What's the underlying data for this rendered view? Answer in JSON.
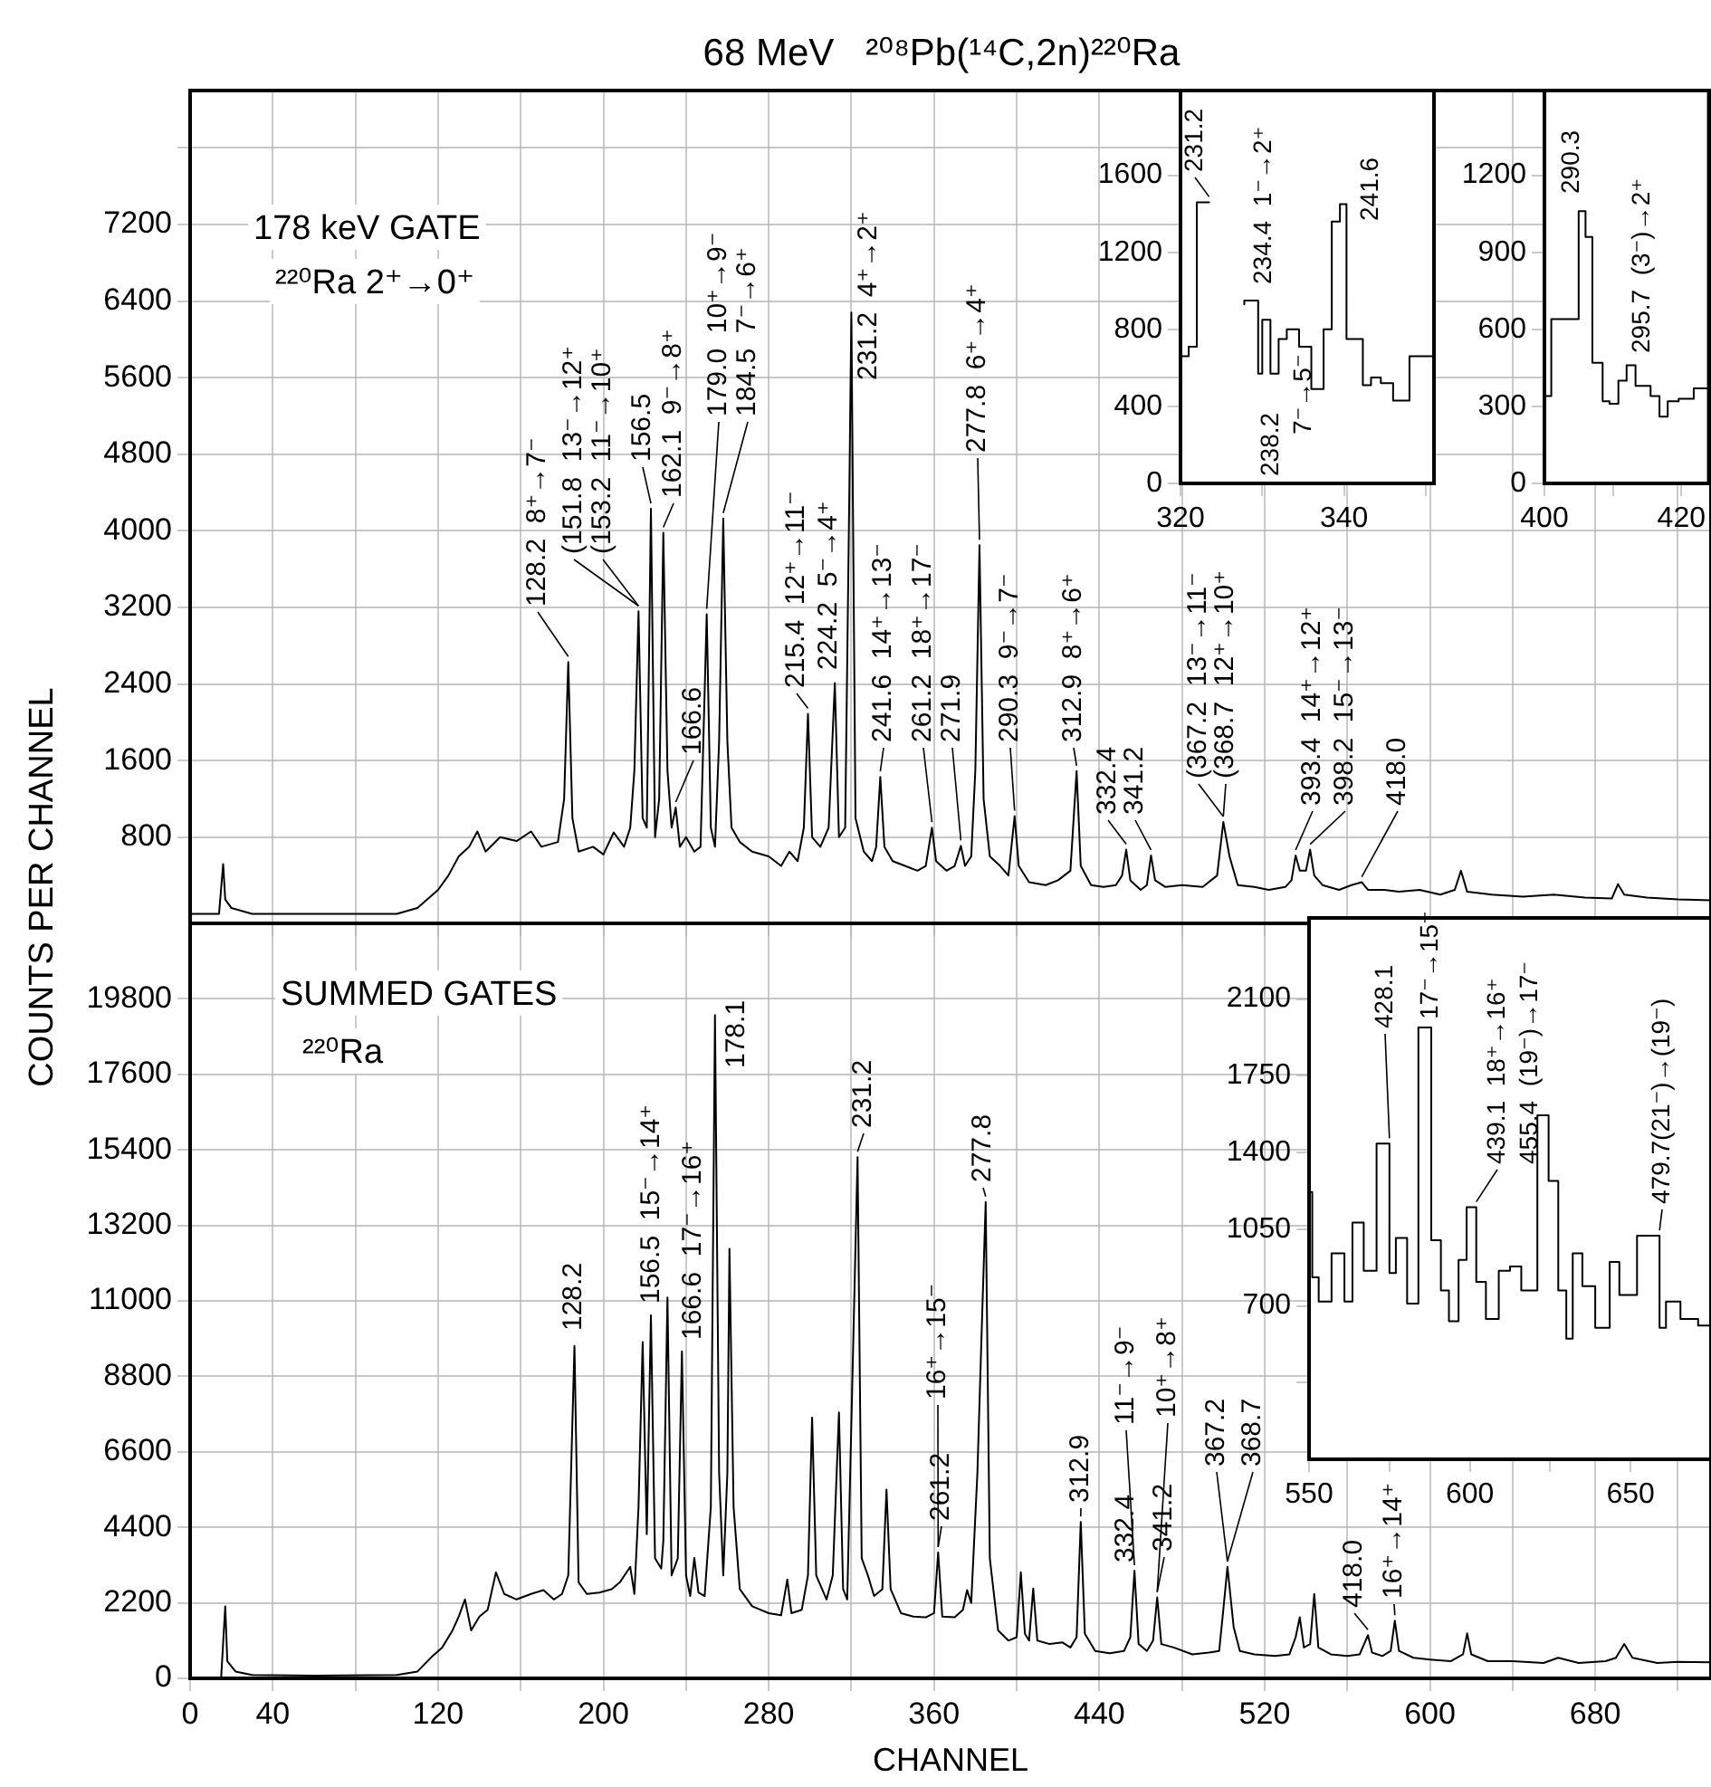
{
  "chart_data": [
    {
      "type": "line",
      "title": "68 MeV   ²⁰⁸Pb(¹⁴C,2n)²²⁰Ra",
      "ylabel": "COUNTS PER CHANNEL",
      "tick_labels": "y",
      "grid": true,
      "marker": "none",
      "xlim": [
        0,
        736
      ],
      "xticks": [
        0,
        40,
        {
          "value": 80,
          "label": null
        },
        120,
        {
          "value": 160,
          "label": null
        },
        200,
        {
          "value": 240,
          "label": null
        },
        280,
        {
          "value": 320,
          "label": null
        },
        360,
        {
          "value": 400,
          "label": null
        },
        440,
        {
          "value": 480,
          "label": null
        },
        520,
        {
          "value": 560,
          "label": null
        },
        600,
        {
          "value": 640,
          "label": null
        },
        680,
        {
          "value": 720,
          "label": null
        }
      ],
      "ylim": [
        -100,
        8600
      ],
      "yticks": [
        800,
        1600,
        2400,
        3200,
        4000,
        4800,
        5600,
        6400,
        7200,
        {
          "value": 8000,
          "label": null
        }
      ],
      "x": [
        0,
        14,
        16,
        17,
        20,
        30,
        100,
        110,
        120,
        125,
        130,
        135,
        139,
        143,
        150,
        158,
        165,
        170,
        178,
        181,
        183,
        185,
        188,
        195,
        200,
        205,
        210,
        213,
        215,
        217,
        219,
        221,
        223,
        225,
        227,
        229,
        231,
        233,
        235,
        237,
        240,
        244,
        247,
        250,
        252,
        254,
        256,
        258,
        260,
        262,
        266,
        272,
        280,
        286,
        290,
        294,
        297,
        299,
        301,
        305,
        309,
        312,
        314,
        317,
        319,
        320,
        322,
        326,
        330,
        332,
        334,
        336,
        340,
        346,
        352,
        356,
        359,
        361,
        366,
        370,
        373,
        375,
        378,
        380,
        382,
        384,
        387,
        392,
        396,
        399,
        401,
        406,
        414,
        420,
        426,
        429,
        431,
        436,
        442,
        448,
        451,
        453,
        455,
        460,
        463,
        465,
        467,
        472,
        480,
        490,
        497,
        500,
        503,
        507,
        515,
        522,
        530,
        533,
        535,
        537,
        540,
        542,
        544,
        548,
        556,
        562,
        567,
        570,
        578,
        585,
        595,
        605,
        612,
        615,
        618,
        630,
        645,
        660,
        675,
        688,
        691,
        694,
        705,
        720,
        736
      ],
      "series": [
        {
          "color": "#000000",
          "values": [
            0,
            0,
            520,
            150,
            60,
            0,
            0,
            60,
            250,
            400,
            600,
            700,
            860,
            650,
            800,
            760,
            860,
            700,
            750,
            1200,
            2630,
            1000,
            650,
            700,
            620,
            850,
            700,
            900,
            1500,
            3160,
            1000,
            900,
            4230,
            800,
            1200,
            3980,
            1500,
            900,
            1110,
            700,
            800,
            650,
            700,
            3130,
            900,
            700,
            1800,
            4130,
            1800,
            900,
            750,
            650,
            600,
            500,
            650,
            550,
            900,
            2090,
            800,
            700,
            900,
            2410,
            800,
            900,
            4370,
            6280,
            1000,
            650,
            550,
            700,
            1430,
            700,
            550,
            500,
            450,
            500,
            900,
            550,
            450,
            500,
            710,
            500,
            600,
            1500,
            3850,
            1200,
            600,
            500,
            400,
            1020,
            500,
            330,
            300,
            350,
            450,
            1490,
            500,
            300,
            280,
            300,
            400,
            670,
            350,
            250,
            300,
            610,
            350,
            280,
            300,
            280,
            400,
            960,
            600,
            300,
            280,
            250,
            280,
            350,
            610,
            450,
            450,
            670,
            400,
            300,
            250,
            300,
            330,
            250,
            250,
            230,
            250,
            200,
            250,
            450,
            230,
            200,
            180,
            200,
            170,
            160,
            310,
            200,
            170,
            150,
            140
          ]
        }
      ],
      "annotations": [
        "178 keV GATE",
        "²²⁰Ra 2⁺→0⁺",
        {
          "text": "128.2  8⁺→7⁻",
          "x": 183,
          "y": 2630
        },
        {
          "text": "(151.8  13⁻→12⁺",
          "x": 217,
          "y": 3160
        },
        {
          "text": "(153.2  11⁻→10⁺",
          "x": 217,
          "y": 3160
        },
        {
          "text": "156.5",
          "x": 223,
          "y": 4230
        },
        {
          "text": "162.1  9⁻→8⁺",
          "x": 229,
          "y": 3980
        },
        {
          "text": "166.6",
          "x": 235,
          "y": 1110
        },
        {
          "text": "179.0  10⁺→9⁻",
          "x": 250,
          "y": 3130
        },
        {
          "text": "184.5  7⁻→6⁺",
          "x": 258,
          "y": 4130
        },
        {
          "text": "215.4  12⁺→11⁻",
          "x": 299,
          "y": 2090
        },
        {
          "text": "224.2  5⁻→4⁺",
          "x": 312,
          "y": 2410
        },
        {
          "text": "231.2  4⁺→2⁺",
          "x": 320,
          "y": 6280
        },
        {
          "text": "241.6  14⁺→13⁻",
          "x": 334,
          "y": 1430
        },
        {
          "text": "261.2  18⁺→17⁻",
          "x": 359,
          "y": 900
        },
        {
          "text": "271.9",
          "x": 373,
          "y": 710
        },
        {
          "text": "277.8  6⁺→4⁺",
          "x": 382,
          "y": 3850
        },
        {
          "text": "290.3  9⁻→7⁻",
          "x": 399,
          "y": 1020
        },
        {
          "text": "312.9  8⁺→6⁺",
          "x": 429,
          "y": 1490
        },
        {
          "text": "332.4",
          "x": 453,
          "y": 670
        },
        {
          "text": "341.2",
          "x": 465,
          "y": 610
        },
        {
          "text": "(367.2  13⁻→11⁻",
          "x": 500,
          "y": 960
        },
        {
          "text": "(368.7  12⁺→10⁺",
          "x": 500,
          "y": 960
        },
        {
          "text": "393.4  14⁺→12⁺",
          "x": 535,
          "y": 610
        },
        {
          "text": "398.2  15⁻→13⁻",
          "x": 542,
          "y": 670
        },
        {
          "text": "418.0",
          "x": 567,
          "y": 330
        }
      ]
    },
    {
      "type": "line",
      "xlabel": "CHANNEL",
      "grid": true,
      "marker": "none",
      "xlim": [
        0,
        736
      ],
      "xticks": [
        0,
        40,
        {
          "value": 80,
          "label": null
        },
        120,
        {
          "value": 160,
          "label": null
        },
        200,
        {
          "value": 240,
          "label": null
        },
        280,
        {
          "value": 320,
          "label": null
        },
        360,
        {
          "value": 400,
          "label": null
        },
        440,
        {
          "value": 480,
          "label": null
        },
        520,
        {
          "value": 560,
          "label": null
        },
        600,
        {
          "value": 640,
          "label": null
        },
        680,
        {
          "value": 720,
          "label": null
        }
      ],
      "ylim": [
        0,
        22000
      ],
      "yticks": [
        0,
        2200,
        4400,
        6600,
        8800,
        11000,
        13200,
        15400,
        17600,
        19800
      ],
      "x": [
        0,
        15,
        17,
        18,
        22,
        30,
        60,
        100,
        110,
        117,
        122,
        127,
        130,
        133,
        136,
        140,
        144,
        148,
        152,
        158,
        165,
        171,
        176,
        180,
        183,
        186,
        188,
        192,
        198,
        204,
        208,
        213,
        215,
        217,
        219,
        221,
        223,
        225,
        228,
        229,
        231,
        233,
        236,
        238,
        240,
        242,
        244,
        246,
        249,
        252,
        254,
        256,
        258,
        260,
        261,
        263,
        266,
        272,
        280,
        286,
        289,
        291,
        296,
        299,
        301,
        303,
        308,
        311,
        314,
        316,
        318,
        321,
        323,
        325,
        328,
        331,
        335,
        337,
        339,
        344,
        350,
        356,
        360,
        362,
        364,
        370,
        374,
        376,
        378,
        381,
        383,
        385,
        387,
        391,
        396,
        400,
        402,
        404,
        406,
        408,
        410,
        416,
        422,
        426,
        429,
        431,
        433,
        438,
        445,
        452,
        455,
        457,
        459,
        463,
        466,
        468,
        470,
        476,
        485,
        493,
        498,
        500,
        502,
        505,
        508,
        515,
        525,
        532,
        535,
        537,
        539,
        542,
        544,
        546,
        552,
        560,
        566,
        570,
        572,
        577,
        581,
        583,
        585,
        592,
        600,
        610,
        616,
        618,
        620,
        628,
        640,
        655,
        662,
        672,
        685,
        690,
        694,
        698,
        710,
        720,
        736
      ],
      "series": [
        {
          "color": "#000000",
          "values": [
            0,
            0,
            2100,
            500,
            200,
            100,
            80,
            100,
            200,
            630,
            900,
            1400,
            1800,
            2300,
            1400,
            1800,
            2000,
            3090,
            2460,
            2300,
            2460,
            2570,
            2300,
            2460,
            3000,
            9690,
            2800,
            2460,
            2500,
            2600,
            2800,
            3250,
            2460,
            5000,
            9800,
            4200,
            10580,
            3500,
            3200,
            4000,
            11100,
            3000,
            3500,
            9530,
            3000,
            2400,
            3510,
            2500,
            2400,
            5000,
            19330,
            6000,
            3000,
            6000,
            12520,
            5000,
            2600,
            2100,
            1900,
            1840,
            2880,
            1900,
            2000,
            3000,
            7600,
            3000,
            2300,
            3000,
            7750,
            2600,
            2300,
            10000,
            15190,
            3500,
            3000,
            2400,
            2600,
            5500,
            2600,
            1900,
            1800,
            1780,
            1900,
            3670,
            1800,
            1780,
            2000,
            2570,
            2200,
            6000,
            10000,
            13880,
            3500,
            1400,
            1100,
            1200,
            3090,
            1300,
            1100,
            2620,
            1100,
            1000,
            1050,
            900,
            1200,
            4560,
            1300,
            800,
            730,
            800,
            1200,
            3140,
            1000,
            800,
            1100,
            2360,
            1000,
            900,
            700,
            750,
            800,
            2000,
            3250,
            1500,
            800,
            700,
            650,
            700,
            1200,
            1780,
            900,
            1000,
            2460,
            900,
            700,
            650,
            700,
            1260,
            750,
            650,
            800,
            1680,
            800,
            600,
            550,
            500,
            700,
            1310,
            700,
            500,
            500,
            450,
            600,
            450,
            500,
            600,
            1000,
            600,
            450,
            480,
            470
          ]
        }
      ],
      "annotations": [
        "SUMMED GATES",
        "²²⁰Ra",
        {
          "text": "128.2",
          "x": 186,
          "y": 9690
        },
        {
          "text": "156.5  15⁻→14⁺",
          "x": 223,
          "y": 10580
        },
        {
          "text": "166.6  17⁻→16⁺",
          "x": 238,
          "y": 9530
        },
        {
          "text": "178.1",
          "x": 254,
          "y": 19330
        },
        {
          "text": "231.2",
          "x": 323,
          "y": 15190
        },
        {
          "text": "261.2",
          "x": 362,
          "y": 3670
        },
        {
          "text": "16⁺→15⁻",
          "x": 362,
          "y": 3670
        },
        {
          "text": "277.8",
          "x": 385,
          "y": 13880
        },
        {
          "text": "312.9",
          "x": 431,
          "y": 4560
        },
        {
          "text": "332.4",
          "x": 457,
          "y": 3140
        },
        {
          "text": "11⁻→9⁻",
          "x": 457,
          "y": 3140
        },
        {
          "text": "341.2",
          "x": 468,
          "y": 2360
        },
        {
          "text": "10⁺→8⁺",
          "x": 468,
          "y": 2360
        },
        {
          "text": "367.2",
          "x": 502,
          "y": 3250
        },
        {
          "text": "368.7",
          "x": 502,
          "y": 3250
        },
        {
          "text": "418.0",
          "x": 570,
          "y": 1260
        },
        {
          "text": "16⁺→14⁺",
          "x": 583,
          "y": 1680
        }
      ]
    },
    {
      "type": "step",
      "marker": "none",
      "xlim": [
        320,
        351
      ],
      "xticks": [
        320,
        {
          "value": 330,
          "label": null
        },
        340,
        {
          "value": 350,
          "label": null
        }
      ],
      "ylim": [
        0,
        2040
      ],
      "yticks": [
        0,
        400,
        800,
        1200,
        1600
      ],
      "x": [
        320,
        321,
        322,
        323.5,
        324.5,
        327.8,
        329.5,
        330,
        331,
        332,
        333,
        334.5,
        336,
        337.5,
        338.5,
        339.5,
        340.3,
        342.3,
        343.3,
        344.5,
        346,
        348,
        349.5,
        351
      ],
      "series": [
        {
          "color": "#000000",
          "values": [
            590,
            660,
            710,
            1460,
            null,
            930,
            950,
            570,
            850,
            570,
            750,
            800,
            710,
            490,
            800,
            1360,
            1450,
            750,
            510,
            550,
            520,
            430,
            660,
            660
          ]
        }
      ],
      "annotations": [
        {
          "text": "231.2",
          "x": 323.5,
          "y": 1460
        },
        {
          "text": "234.4  1⁻→2⁺",
          "x": 329.5,
          "y": 950
        },
        {
          "text": "238.2",
          "x": 333,
          "y": 750
        },
        {
          "text": "7⁻→5⁻",
          "x": 333,
          "y": 750
        },
        {
          "text": "241.6",
          "x": 340.3,
          "y": 1450
        }
      ]
    },
    {
      "type": "step",
      "marker": "none",
      "xlim": [
        400,
        424
      ],
      "xticks": [
        400,
        {
          "value": 410,
          "label": null
        },
        420
      ],
      "ylim": [
        0,
        1530
      ],
      "yticks": [
        0,
        300,
        600,
        900,
        1200
      ],
      "x": [
        400,
        401,
        405,
        406,
        407,
        408.5,
        409.5,
        410.8,
        412,
        413.3,
        415.5,
        416.8,
        418,
        419.6,
        421.8,
        423,
        424
      ],
      "series": [
        {
          "color": "#000000",
          "values": [
            330,
            340,
            640,
            1060,
            960,
            470,
            320,
            310,
            400,
            460,
            380,
            340,
            260,
            320,
            330,
            370,
            370
          ]
        }
      ],
      "annotations": [
        {
          "text": "290.3",
          "x": 406,
          "y": 1060
        },
        {
          "text": "295.7  (3⁻)→2⁺",
          "x": 413.3,
          "y": 460
        }
      ]
    },
    {
      "type": "step",
      "marker": "none",
      "xlim": [
        550,
        675
      ],
      "xticks": [
        550,
        {
          "value": 575,
          "label": null
        },
        600,
        {
          "value": 625,
          "label": null
        },
        650
      ],
      "ylim": [
        0,
        2470
      ],
      "yticks": [
        {
          "value": 350,
          "label": null
        },
        700,
        1050,
        1400,
        1750,
        2100
      ],
      "x": [
        550,
        551,
        553,
        557,
        561,
        563.5,
        567,
        571,
        575,
        577,
        580.5,
        584,
        588,
        591,
        593.5,
        596.5,
        599,
        602,
        605,
        609,
        612.5,
        616,
        621,
        624.5,
        627.5,
        630,
        632,
        635,
        639,
        643.5,
        646.5,
        652,
        659,
        661,
        665.5,
        671,
        675
      ],
      "series": [
        {
          "color": "#000000",
          "values": [
            2300,
            1220,
            830,
            720,
            940,
            720,
            1080,
            860,
            1440,
            850,
            1010,
            710,
            1970,
            1000,
            770,
            630,
            910,
            1150,
            810,
            640,
            860,
            880,
            770,
            1570,
            1270,
            770,
            550,
            940,
            790,
            600,
            900,
            750,
            1020,
            600,
            720,
            640,
            610
          ]
        }
      ],
      "annotations": [
        {
          "text": "428.1",
          "x": 575,
          "y": 1440
        },
        {
          "text": "17⁻→15⁻",
          "x": 588,
          "y": 1970
        },
        {
          "text": "439.1  18⁺→16⁺",
          "x": 602,
          "y": 1150
        },
        {
          "text": "455.4  (19⁻)→17⁻",
          "x": 624.5,
          "y": 1570
        },
        {
          "text": "479.7(21⁻)→(19⁻)",
          "x": 659,
          "y": 1020
        }
      ]
    }
  ]
}
